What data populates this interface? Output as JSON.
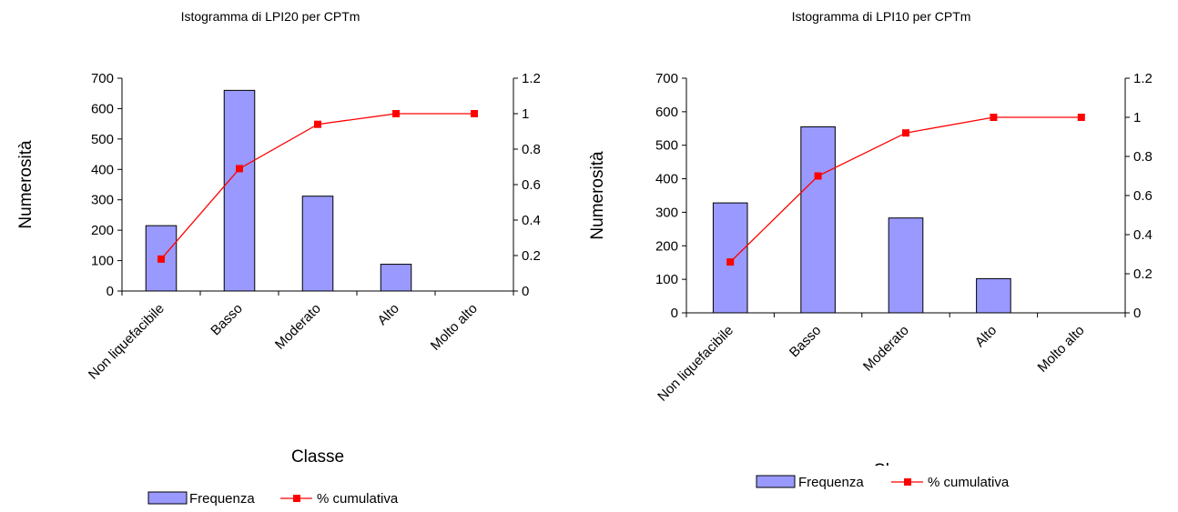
{
  "chart_data": [
    {
      "type": "bar",
      "title": "Istogramma di LPI20 per CPTm",
      "xlabel": "Classe",
      "ylabel": "Numerosità",
      "categories": [
        "Non liquefacibile",
        "Basso",
        "Moderato",
        "Alto",
        "Molto alto"
      ],
      "ylim": [
        0,
        700
      ],
      "y_ticks": [
        "0",
        "100",
        "200",
        "300",
        "400",
        "500",
        "600",
        "700"
      ],
      "y2lim": [
        0,
        1.2
      ],
      "y2_ticks": [
        "0",
        "0.2",
        "0.4",
        "0.6",
        "0.8",
        "1",
        "1.2"
      ],
      "series": [
        {
          "name": "Frequenza",
          "kind": "bar",
          "axis": "left",
          "color": "#9999ff",
          "values": [
            215,
            660,
            312,
            88,
            0
          ]
        },
        {
          "name": "% cumulativa",
          "kind": "line",
          "axis": "right",
          "color": "#ff0000",
          "values": [
            0.18,
            0.69,
            0.94,
            1.0,
            1.0
          ]
        }
      ],
      "legend": "bottom"
    },
    {
      "type": "bar",
      "title": "Istogramma di LPI10 per CPTm",
      "xlabel": "Cl",
      "ylabel": "Numerosità",
      "categories": [
        "Non liquefacibile",
        "Basso",
        "Moderato",
        "Alto",
        "Molto alto"
      ],
      "ylim": [
        0,
        700
      ],
      "y_ticks": [
        "0",
        "100",
        "200",
        "300",
        "400",
        "500",
        "600",
        "700"
      ],
      "y2lim": [
        0,
        1.2
      ],
      "y2_ticks": [
        "0",
        "0.2",
        "0.4",
        "0.6",
        "0.8",
        "1",
        "1.2"
      ],
      "series": [
        {
          "name": "Frequenza",
          "kind": "bar",
          "axis": "left",
          "color": "#9999ff",
          "values": [
            328,
            555,
            283,
            102,
            0
          ]
        },
        {
          "name": "% cumulativa",
          "kind": "line",
          "axis": "right",
          "color": "#ff0000",
          "values": [
            0.26,
            0.7,
            0.92,
            1.0,
            1.0
          ]
        }
      ],
      "legend": "bottom"
    }
  ]
}
